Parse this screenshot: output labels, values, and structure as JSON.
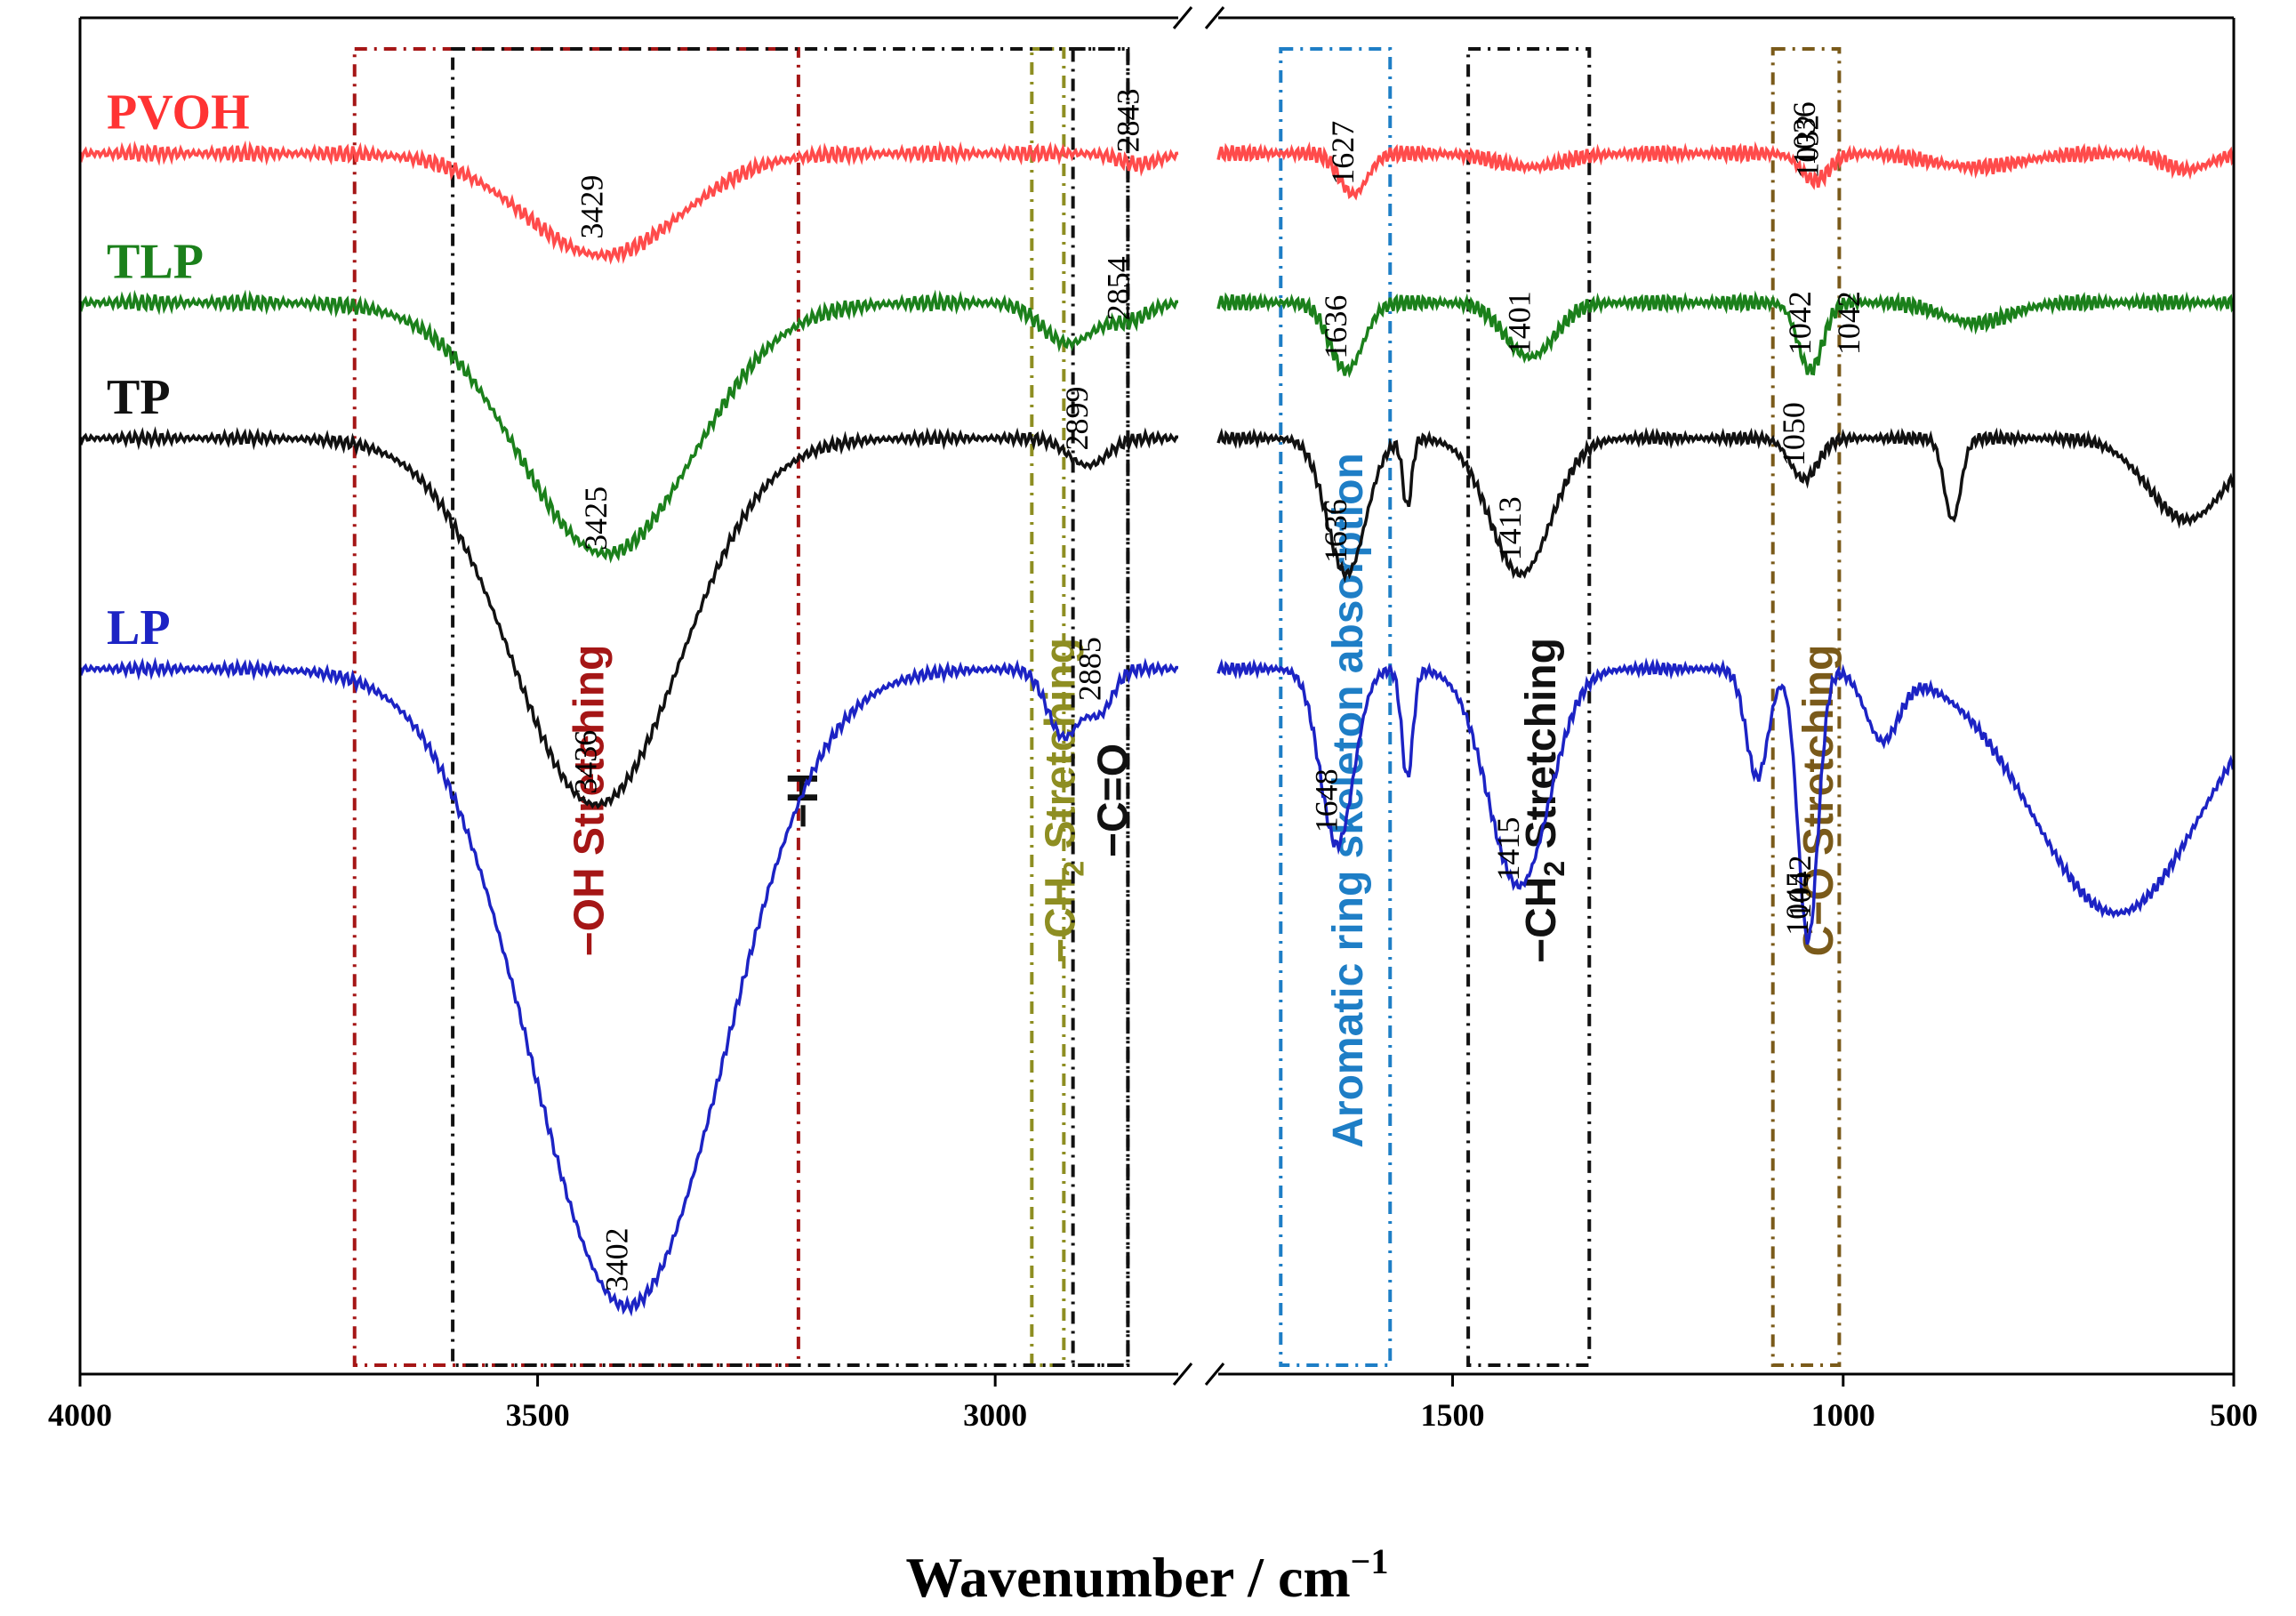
{
  "chart_data": {
    "type": "line",
    "title": "",
    "xlabel": "Wavenumber / cm",
    "xlabel_sup": "−1",
    "ylabel": "",
    "xlim": [
      4000,
      500
    ],
    "axis_break": [
      2800,
      1800
    ],
    "x_ticks": [
      "4000",
      "3500",
      "3000",
      "1500",
      "1000",
      "500"
    ],
    "x_tick_values": [
      4000,
      3500,
      3000,
      1500,
      1000,
      500
    ],
    "series": [
      {
        "name": "PVOH",
        "color": "#ff4b4b",
        "label_color": "#ff3333",
        "baseline": 0.9,
        "noise": 0.004,
        "bands": [
          [
            3429,
            0.075,
            120
          ],
          [
            2843,
            0.008,
            30
          ],
          [
            1627,
            0.03,
            25
          ],
          [
            1401,
            0.01,
            60
          ],
          [
            1036,
            0.02,
            25
          ],
          [
            830,
            0.01,
            80
          ],
          [
            560,
            0.012,
            40
          ]
        ]
      },
      {
        "name": "TLP",
        "color": "#1b801b",
        "label_color": "#1b801b",
        "baseline": 0.79,
        "noise": 0.004,
        "bands": [
          [
            3425,
            0.185,
            135
          ],
          [
            2920,
            0.03,
            40
          ],
          [
            2854,
            0.012,
            30
          ],
          [
            1636,
            0.05,
            30
          ],
          [
            1401,
            0.04,
            45
          ],
          [
            1042,
            0.05,
            22
          ],
          [
            830,
            0.015,
            60
          ]
        ]
      },
      {
        "name": "TP",
        "color": "#111111",
        "label_color": "#111111",
        "baseline": 0.69,
        "noise": 0.003,
        "bands": [
          [
            3436,
            0.27,
            130
          ],
          [
            2899,
            0.02,
            30
          ],
          [
            1636,
            0.1,
            35
          ],
          [
            1558,
            0.05,
            8
          ],
          [
            1413,
            0.1,
            55
          ],
          [
            1050,
            0.03,
            25
          ],
          [
            860,
            0.06,
            15
          ],
          [
            560,
            0.06,
            70
          ]
        ]
      },
      {
        "name": "LP",
        "color": "#1c23c4",
        "label_color": "#1c23c4",
        "baseline": 0.52,
        "noise": 0.003,
        "bands": [
          [
            3402,
            0.47,
            150
          ],
          [
            2925,
            0.05,
            25
          ],
          [
            2885,
            0.03,
            20
          ],
          [
            1648,
            0.13,
            30
          ],
          [
            1558,
            0.08,
            10
          ],
          [
            1415,
            0.16,
            55
          ],
          [
            1110,
            0.08,
            20
          ],
          [
            1045,
            0.2,
            18
          ],
          [
            950,
            0.05,
            30
          ],
          [
            650,
            0.18,
            150
          ]
        ]
      }
    ],
    "peak_labels": [
      {
        "text": "3429",
        "x": 3429,
        "series": "PVOH"
      },
      {
        "text": "3425",
        "x": 3425,
        "series": "TLP"
      },
      {
        "text": "3436",
        "x": 3436,
        "series": "TP"
      },
      {
        "text": "3402",
        "x": 3402,
        "series": "LP"
      },
      {
        "text": "2843",
        "x": 2843,
        "series": "PVOH"
      },
      {
        "text": "2854",
        "x": 2854,
        "series": "TLP"
      },
      {
        "text": "2899",
        "x": 2899,
        "series": "TP"
      },
      {
        "text": "2885",
        "x": 2885,
        "series": "LP"
      },
      {
        "text": "1627",
        "x": 1627,
        "series": "PVOH"
      },
      {
        "text": "1636",
        "x": 1636,
        "series": "TLP"
      },
      {
        "text": "1636",
        "x": 1636,
        "series": "TP"
      },
      {
        "text": "1648",
        "x": 1648,
        "series": "LP"
      },
      {
        "text": "1401",
        "x": 1401,
        "series": "TLP"
      },
      {
        "text": "1413",
        "x": 1413,
        "series": "TP"
      },
      {
        "text": "1415",
        "x": 1415,
        "series": "LP"
      },
      {
        "text": "1032",
        "x": 1032,
        "series": "PVOH"
      },
      {
        "text": "1036",
        "x": 1036,
        "series": "PVOH"
      },
      {
        "text": "1042",
        "x": 1042,
        "series": "TLP"
      },
      {
        "text": "1042",
        "x": 1042,
        "series": "TLP"
      },
      {
        "text": "1050",
        "x": 1050,
        "series": "TP"
      },
      {
        "text": "1042",
        "x": 1042,
        "series": "LP"
      },
      {
        "text": "1045",
        "x": 1045,
        "series": "LP"
      }
    ],
    "regions": [
      {
        "label": "−OH Stretching",
        "x_from": 3700,
        "x_to": 3215,
        "color": "#a51616"
      },
      {
        "label": "−CH",
        "sub": "2",
        "suffix": " Stretching",
        "x_from": 2960,
        "x_to": 2925,
        "color": "#8e8e22"
      },
      {
        "label": "−C=O",
        "x_from": 2915,
        "x_to": 2855,
        "color": "#111111"
      },
      {
        "label": "−H",
        "x_from": 2855,
        "x_to": 2780,
        "color": "#111111"
      },
      {
        "label": "Aromatic ring skeleton absorption",
        "x_from": 1720,
        "x_to": 1580,
        "color": "#1e7ec6"
      },
      {
        "label": "−CH",
        "sub": "2",
        "suffix": " Stretching",
        "x_from": 1480,
        "x_to": 1325,
        "color": "#111111"
      },
      {
        "label": "C−O Stretching",
        "x_from": 1090,
        "x_to": 1005,
        "color": "#7a5a1a"
      }
    ]
  }
}
